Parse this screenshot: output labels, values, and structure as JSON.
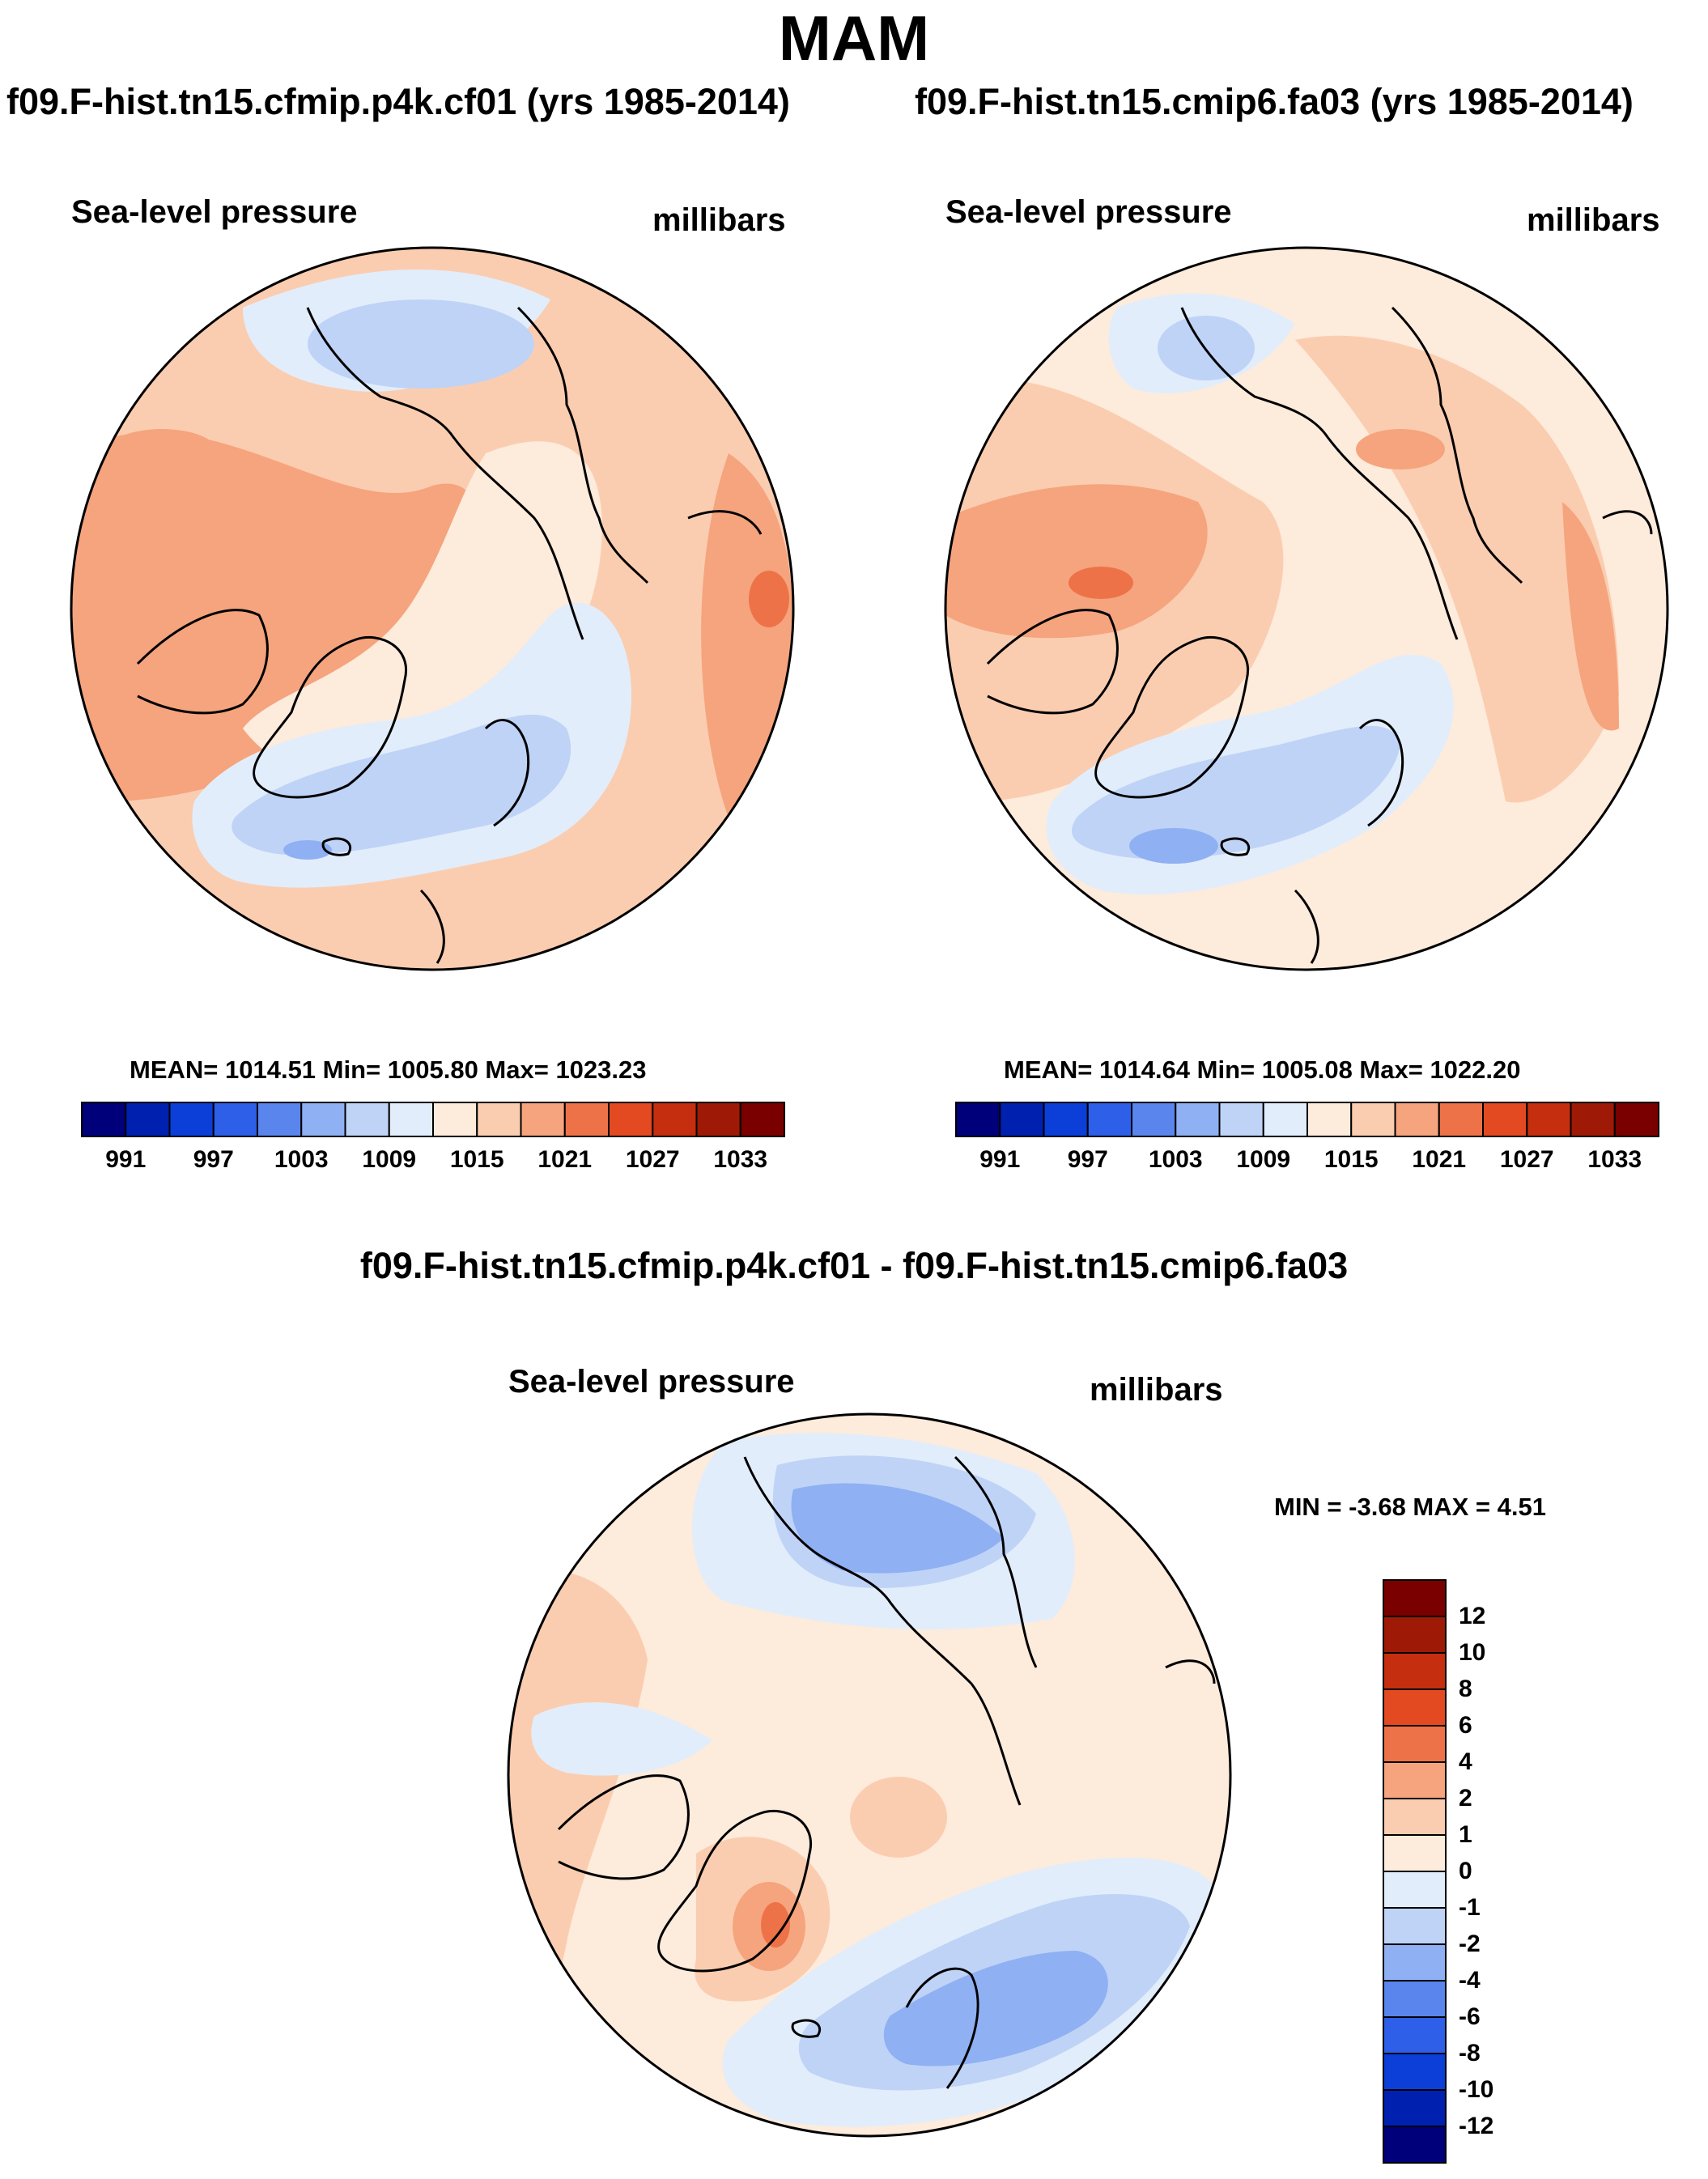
{
  "title": "MAM",
  "panels": [
    {
      "id": "case1",
      "title": "f09.F-hist.tn15.cfmip.p4k.cf01 (yrs 1985-2014)",
      "left_label": "Sea-level pressure",
      "right_label": "millibars",
      "stats": "MEAN= 1014.51  Min= 1005.80  Max= 1023.23",
      "mean": 1014.51,
      "min": 1005.8,
      "max": 1023.23
    },
    {
      "id": "case2",
      "title": "f09.F-hist.tn15.cmip6.fa03 (yrs 1985-2014)",
      "left_label": "Sea-level pressure",
      "right_label": "millibars",
      "stats": "MEAN= 1014.64  Min= 1005.08  Max= 1022.20",
      "mean": 1014.64,
      "min": 1005.08,
      "max": 1022.2
    },
    {
      "id": "diff",
      "title": "f09.F-hist.tn15.cfmip.p4k.cf01 - f09.F-hist.tn15.cmip6.fa03",
      "left_label": "Sea-level pressure",
      "right_label": "millibars",
      "stats": "MIN =  -3.68 MAX =   4.51",
      "min": -3.68,
      "max": 4.51
    }
  ],
  "abs_colorbar": {
    "colors": [
      "#00007a",
      "#0020b0",
      "#0c3fd8",
      "#2d5fe8",
      "#5a85ec",
      "#8fb0f2",
      "#bfd3f7",
      "#e2edfb",
      "#fdebdc",
      "#fbcdb0",
      "#f5a47e",
      "#ee7248",
      "#e34a22",
      "#c52e0e",
      "#9e1a06",
      "#7a0000"
    ],
    "tick_labels": [
      "991",
      "997",
      "1003",
      "1009",
      "1015",
      "1021",
      "1027",
      "1033"
    ]
  },
  "diff_colorbar": {
    "colors": [
      "#00007a",
      "#0020b0",
      "#0c3fd8",
      "#2d5fe8",
      "#5a85ec",
      "#8fb0f2",
      "#bfd3f7",
      "#e2edfb",
      "#fdebdc",
      "#fbcdb0",
      "#f5a47e",
      "#ee7248",
      "#e34a22",
      "#c52e0e",
      "#9e1a06",
      "#7a0000"
    ],
    "tick_labels": [
      "12",
      "10",
      "8",
      "6",
      "4",
      "2",
      "1",
      "0",
      "-1",
      "-2",
      "-4",
      "-6",
      "-8",
      "-10",
      "-12"
    ]
  },
  "colors": {
    "background": "#ffffff",
    "outline": "#000000"
  }
}
